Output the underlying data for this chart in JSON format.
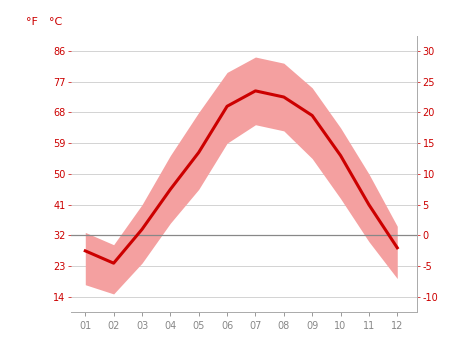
{
  "months": [
    1,
    2,
    3,
    4,
    5,
    6,
    7,
    8,
    9,
    10,
    11,
    12
  ],
  "x_labels": [
    "01",
    "02",
    "03",
    "04",
    "05",
    "06",
    "07",
    "08",
    "09",
    "10",
    "11",
    "12"
  ],
  "avg_temp_c": [
    -2.5,
    -4.5,
    1.0,
    7.5,
    13.5,
    21.0,
    23.5,
    22.5,
    19.5,
    13.0,
    5.0,
    -2.0
  ],
  "max_temp_c": [
    0.5,
    -1.5,
    5.0,
    13.0,
    20.0,
    26.5,
    29.0,
    28.0,
    24.0,
    17.5,
    10.0,
    1.5
  ],
  "min_temp_c": [
    -8.0,
    -9.5,
    -4.5,
    2.0,
    7.5,
    15.0,
    18.0,
    17.0,
    12.5,
    6.0,
    -1.0,
    -7.0
  ],
  "line_color": "#cc0000",
  "band_color": "#f4a0a0",
  "zero_line_color": "#888888",
  "grid_color": "#cccccc",
  "ticks_c": [
    -10,
    -5,
    0,
    5,
    10,
    15,
    20,
    25,
    30
  ],
  "ticks_f": [
    14,
    23,
    32,
    41,
    50,
    59,
    68,
    77,
    86
  ],
  "labels_f": [
    "14",
    "23",
    "32",
    "41",
    "50",
    "59",
    "68",
    "77",
    "86"
  ],
  "labels_c": [
    "-10",
    "-5",
    "0",
    "5",
    "10",
    "15",
    "20",
    "25",
    "30"
  ],
  "ylim_c": [
    -12.5,
    32.5
  ],
  "xlim": [
    0.5,
    12.7
  ],
  "label_f": "°F",
  "label_c": "°C",
  "tick_color": "#cc0000",
  "xlabel_color": "#888888",
  "background_color": "#ffffff"
}
